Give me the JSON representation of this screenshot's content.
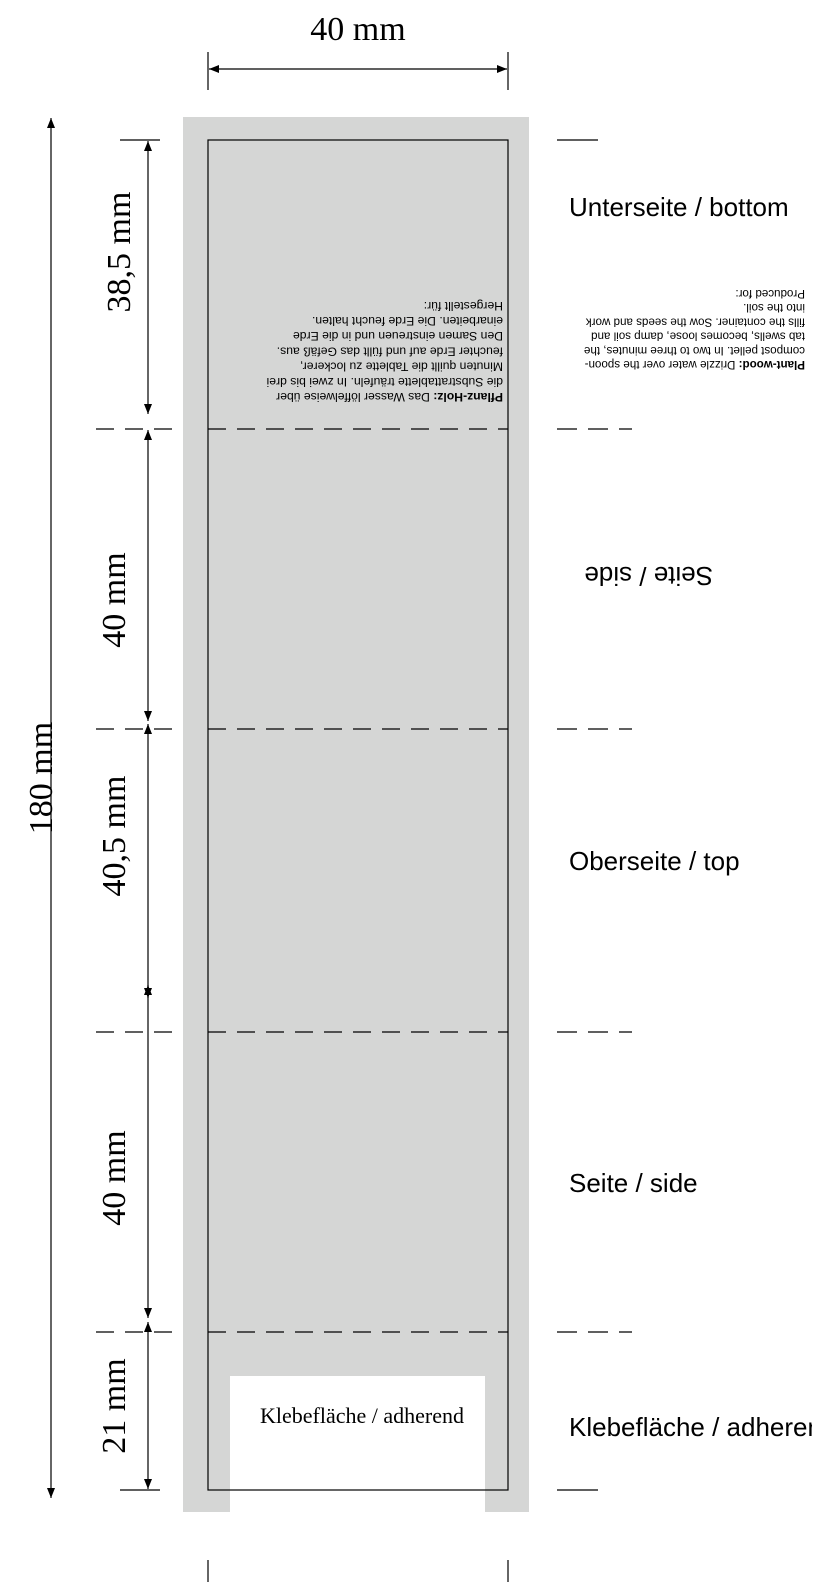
{
  "dimensions": {
    "width": "40 mm",
    "total_height": "180 mm",
    "segments": [
      "38,5 mm",
      "40 mm",
      "40,5 mm",
      "40 mm",
      "21 mm"
    ]
  },
  "panels": {
    "bottom": "Unterseite / bottom",
    "side_upside_down": "Seite / side",
    "top": "Oberseite / top",
    "side": "Seite / side",
    "adhesive": "Klebefläche / adherend"
  },
  "adhesive_area_label": "Klebefläche / adherend",
  "instructions_de": {
    "lines": [
      [
        "Pflanz-Holz:",
        " Das Wasser löffelweise über"
      ],
      [
        "",
        "die Substrattablette träufeln. In zwei bis drei"
      ],
      [
        "",
        "Minuten quillt die Tablette zu lockerer,"
      ],
      [
        "",
        "feuchter Erde auf und füllt das Gefäß aus."
      ],
      [
        "",
        "Den Samen einstreuen und in die Erde"
      ],
      [
        "",
        "einarbeiten. Die Erde feucht halten."
      ],
      [
        "",
        "Hergestellt für:"
      ]
    ]
  },
  "instructions_en": {
    "lines": [
      [
        "Plant-wood:",
        " Drizzle water over the spoon-"
      ],
      [
        "",
        "compost pellet. In two to three minutes, the"
      ],
      [
        "",
        "tab swells, becomes loose, damp soil and"
      ],
      [
        "",
        "fills the container. Sow the seeds and work"
      ],
      [
        "",
        "into the soil."
      ],
      [
        "",
        "Produced for:"
      ]
    ]
  },
  "colors": {
    "background": "#ffffff",
    "label_fill": "#d5d6d5",
    "line": "#000000"
  }
}
